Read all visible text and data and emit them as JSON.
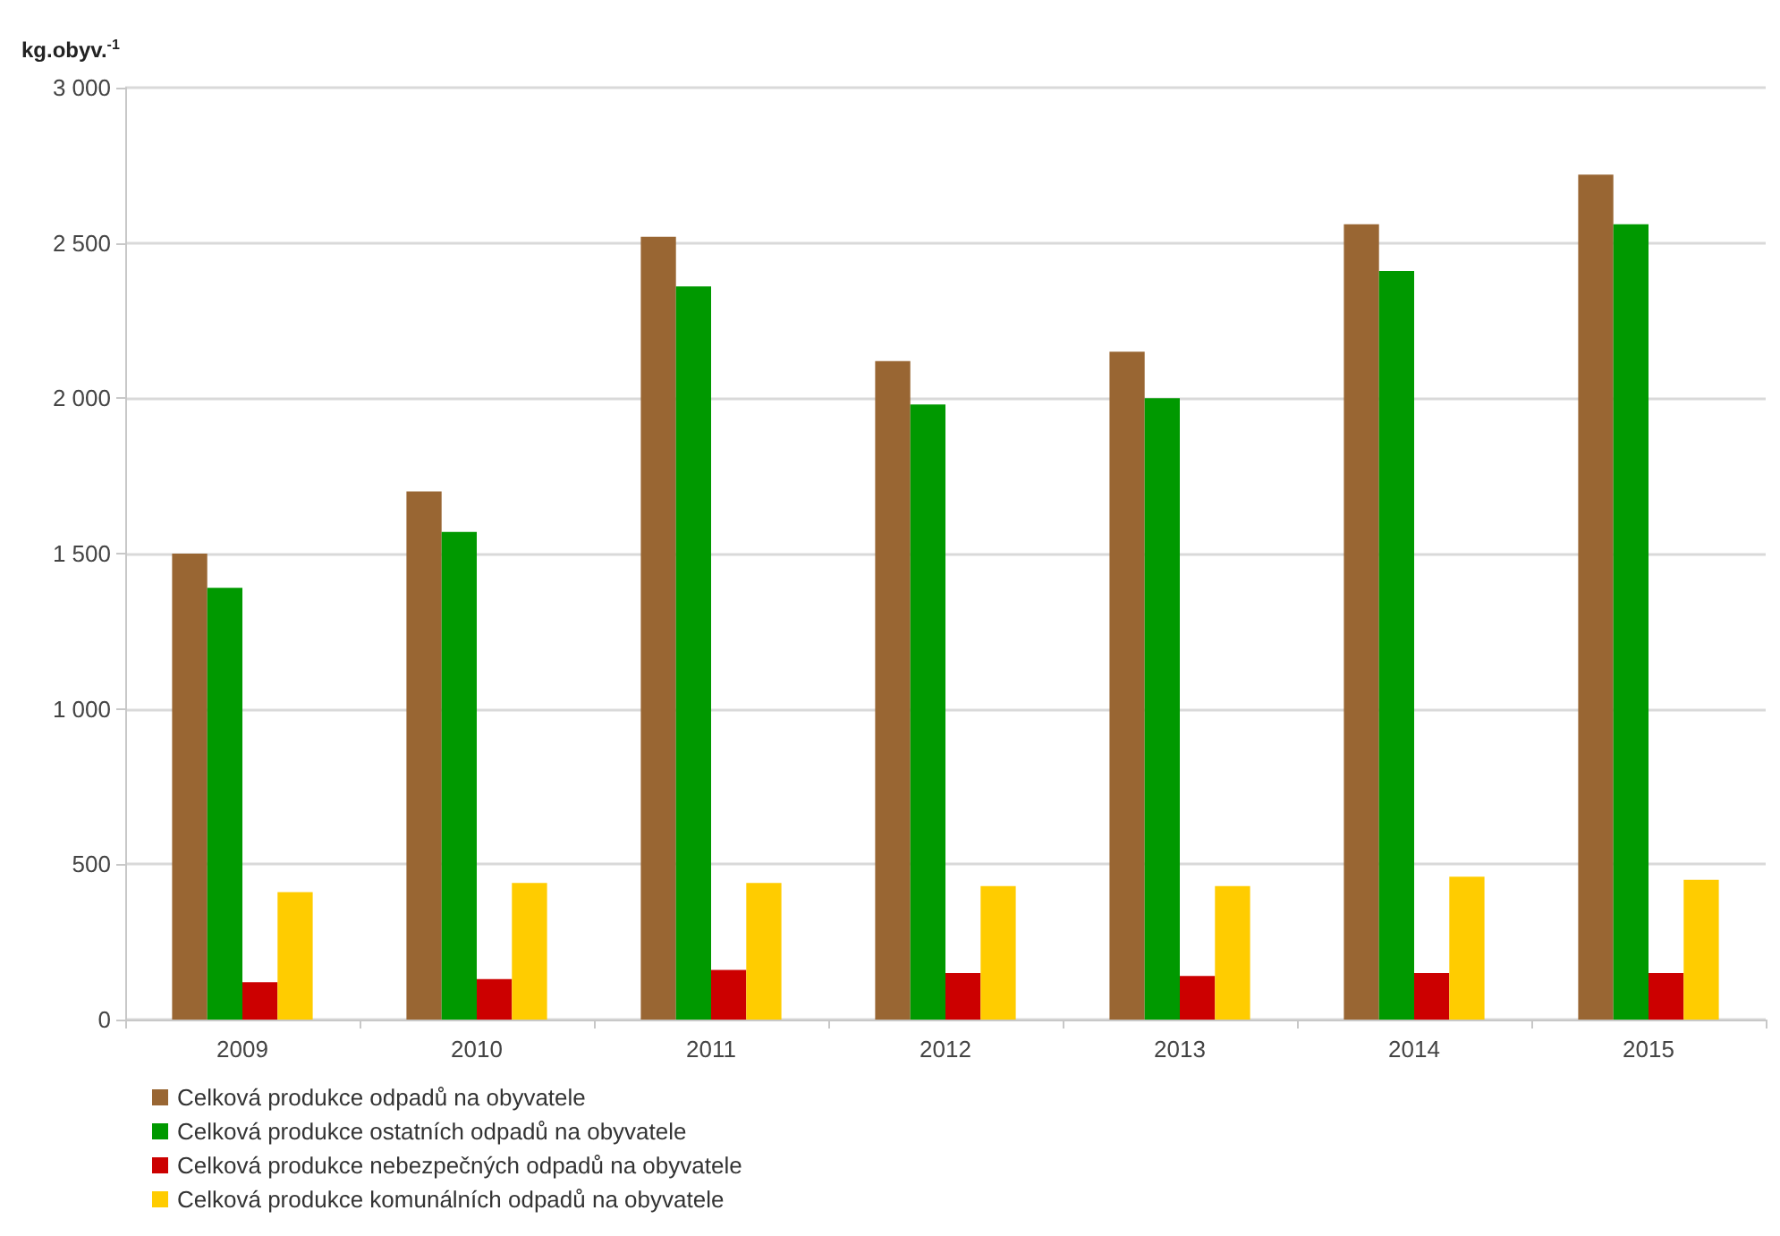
{
  "chart_data": {
    "type": "bar",
    "ylabel": "kg.obyv.$^{-1}$",
    "categories": [
      "2009",
      "2010",
      "2011",
      "2012",
      "2013",
      "2014",
      "2015"
    ],
    "series": [
      {
        "name": "Celková produkce odpadů na obyvatele",
        "color": "#996633",
        "values": [
          1500,
          1700,
          2520,
          2120,
          2150,
          2560,
          2720
        ]
      },
      {
        "name": "Celková produkce ostatních odpadů na obyvatele",
        "color": "#009900",
        "values": [
          1390,
          1570,
          2360,
          1980,
          2000,
          2410,
          2560
        ]
      },
      {
        "name": "Celková produkce nebezpečných odpadů na obyvatele",
        "color": "#cc0000",
        "values": [
          120,
          130,
          160,
          150,
          140,
          150,
          150
        ]
      },
      {
        "name": "Celková produkce komunálních odpadů na obyvatele",
        "color": "#ffcc00",
        "values": [
          410,
          440,
          440,
          430,
          430,
          460,
          450
        ]
      }
    ],
    "ylim": [
      0,
      3000
    ],
    "yticks": [
      {
        "value": 0,
        "label": "0"
      },
      {
        "value": 500,
        "label": "500"
      },
      {
        "value": 1000,
        "label": "1 000"
      },
      {
        "value": 1500,
        "label": "1 500"
      },
      {
        "value": 2000,
        "label": "2 000"
      },
      {
        "value": 2500,
        "label": "2 500"
      },
      {
        "value": 3000,
        "label": "3 000"
      }
    ],
    "grid": "y",
    "legend": "bottom"
  }
}
